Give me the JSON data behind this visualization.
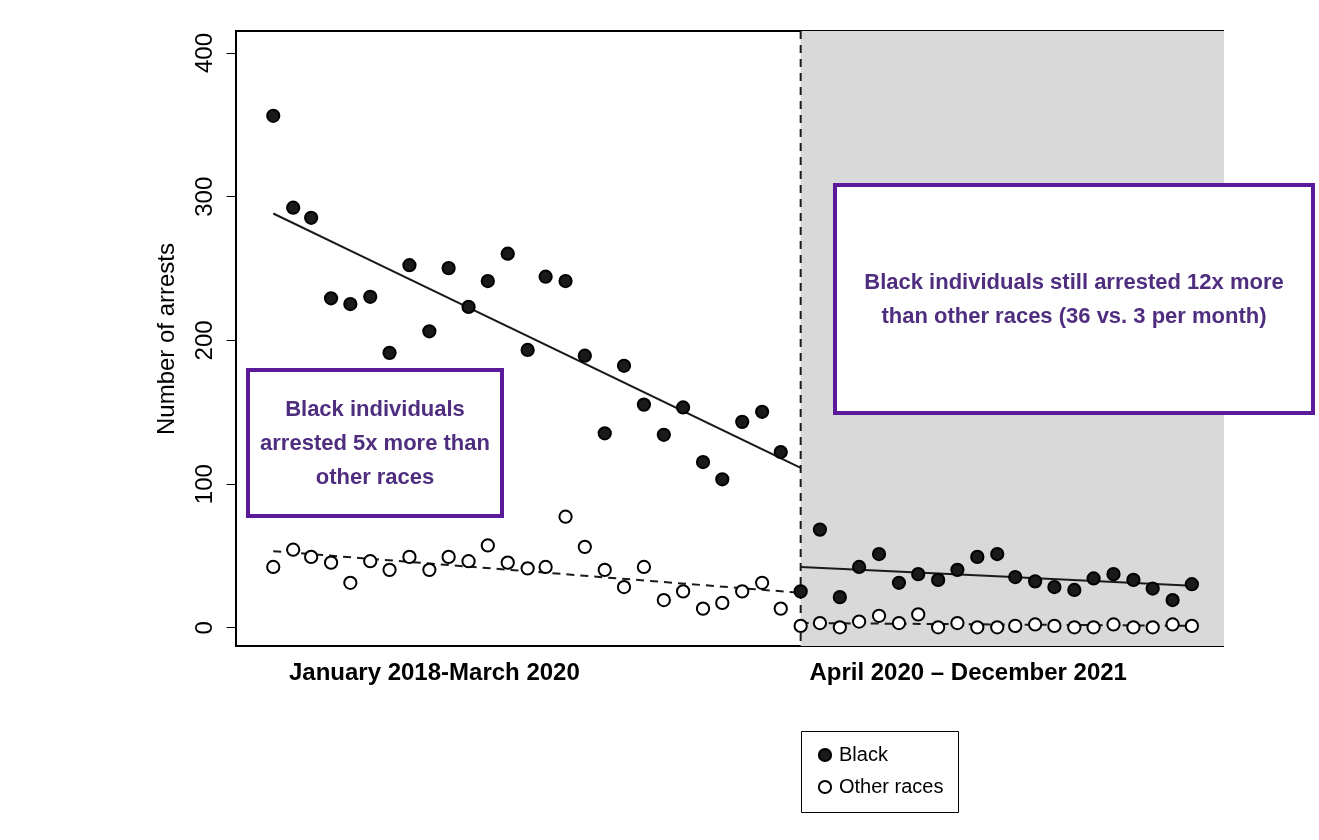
{
  "chart_data": {
    "type": "scatter",
    "ylabel": "Number of arrests",
    "x": [
      "2018-01",
      "2018-02",
      "2018-03",
      "2018-04",
      "2018-05",
      "2018-06",
      "2018-07",
      "2018-08",
      "2018-09",
      "2018-10",
      "2018-11",
      "2018-12",
      "2019-01",
      "2019-02",
      "2019-03",
      "2019-04",
      "2019-05",
      "2019-06",
      "2019-07",
      "2019-08",
      "2019-09",
      "2019-10",
      "2019-11",
      "2019-12",
      "2020-01",
      "2020-02",
      "2020-03",
      "2020-04",
      "2020-05",
      "2020-06",
      "2020-07",
      "2020-08",
      "2020-09",
      "2020-10",
      "2020-11",
      "2020-12",
      "2021-01",
      "2021-02",
      "2021-03",
      "2021-04",
      "2021-05",
      "2021-06",
      "2021-07",
      "2021-08",
      "2021-09",
      "2021-10",
      "2021-11",
      "2021-12"
    ],
    "series": [
      {
        "name": "Black",
        "color": "#1a1a1a",
        "values": [
          356,
          292,
          285,
          229,
          225,
          230,
          191,
          252,
          206,
          250,
          223,
          241,
          260,
          193,
          244,
          241,
          189,
          135,
          182,
          155,
          134,
          153,
          115,
          103,
          143,
          150,
          122,
          25,
          68,
          21,
          42,
          51,
          31,
          37,
          33,
          40,
          49,
          51,
          35,
          32,
          28,
          26,
          34,
          37,
          33,
          27,
          19,
          30
        ]
      },
      {
        "name": "Other races",
        "color": "#ffffff",
        "values": [
          42,
          54,
          49,
          45,
          31,
          46,
          40,
          49,
          40,
          49,
          46,
          57,
          45,
          41,
          42,
          77,
          56,
          40,
          28,
          42,
          19,
          25,
          13,
          17,
          25,
          31,
          13,
          1,
          3,
          0,
          4,
          8,
          3,
          9,
          0,
          3,
          0,
          0,
          1,
          2,
          1,
          0,
          0,
          2,
          0,
          0,
          2,
          1
        ]
      },
      {
        "type": "line",
        "color": "#1a1a1a",
        "line_style": "solid",
        "marker": "none",
        "x": [
          "2018-01",
          "2020-04"
        ],
        "values": [
          288,
          111
        ]
      },
      {
        "type": "line",
        "color": "#1a1a1a",
        "line_style": "solid",
        "marker": "none",
        "x": [
          "2020-04",
          "2021-12"
        ],
        "values": [
          42,
          29
        ]
      },
      {
        "type": "line",
        "color": "#1a1a1a",
        "line_style": "dashed",
        "marker": "none",
        "x": [
          "2018-01",
          "2020-04"
        ],
        "values": [
          53,
          24
        ]
      },
      {
        "type": "line",
        "color": "#1a1a1a",
        "line_style": "dashed",
        "marker": "none",
        "x": [
          "2020-04",
          "2021-12"
        ],
        "values": [
          3,
          1
        ]
      }
    ],
    "xlim": [
      "2017-11-04",
      "2022-01-20"
    ],
    "xticks": [
      {
        "value": "2018-09-08",
        "label": "January 2018-March 2020"
      },
      {
        "value": "2020-12-17",
        "label": "April 2020 – December 2021"
      }
    ],
    "ylim": [
      -13,
      415
    ],
    "yticks": [
      0,
      100,
      200,
      300,
      400
    ],
    "ref_lines": [
      {
        "axis": "x",
        "value": "2020-04",
        "line_style": "dashed",
        "color": "#1a1a1a"
      }
    ],
    "bands": [
      {
        "axis": "x",
        "from": "2020-04",
        "to": "2022-01-20",
        "color": "#d9d9d9"
      }
    ],
    "annotations": [
      "Black individuals arrested 5x more than other races",
      "Black individuals still arrested 12x more than other races (36 vs. 3 per month)"
    ],
    "marker": "circle",
    "legend": "bottom",
    "grid": false
  }
}
